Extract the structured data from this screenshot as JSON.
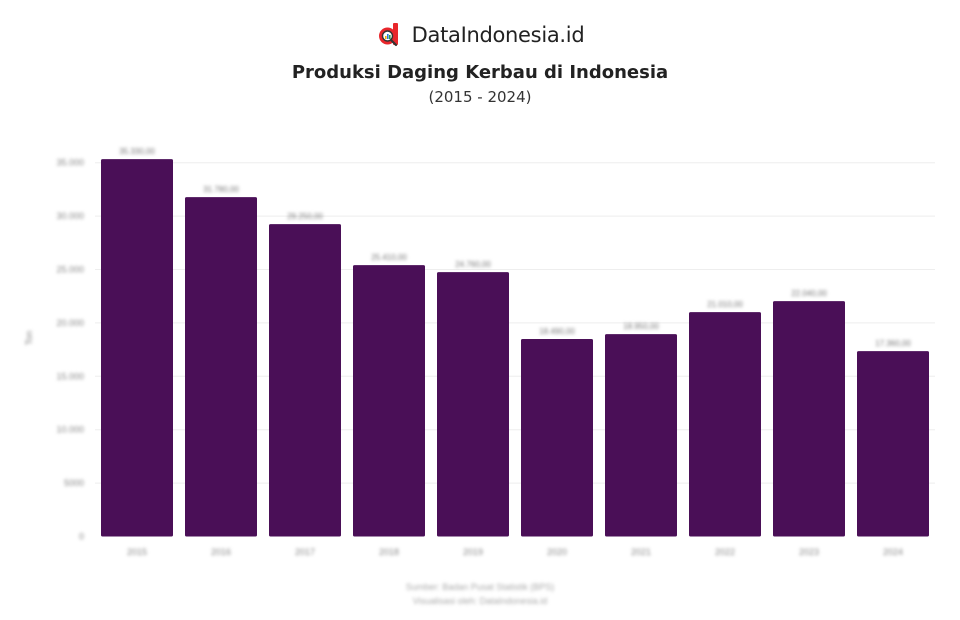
{
  "header": {
    "brand_name": "DataIndonesia.id",
    "logo_icon": "dataindonesia-logo-icon",
    "title": "Produksi Daging Kerbau di Indonesia",
    "subtitle": "(2015 - 2024)"
  },
  "colors": {
    "bar": "#4a0f57",
    "grid": "#eeeeee",
    "brand_red": "#e8262b"
  },
  "footer": {
    "source": "Sumber: Badan Pusat Statistik (BPS)",
    "credit": "Visualisasi oleh: DataIndonesia.id"
  },
  "chart_data": {
    "type": "bar",
    "title": "Produksi Daging Kerbau di Indonesia",
    "subtitle": "(2015 - 2024)",
    "xlabel": "",
    "ylabel": "Ton",
    "categories": [
      "2015",
      "2016",
      "2017",
      "2018",
      "2019",
      "2020",
      "2021",
      "2022",
      "2023",
      "2024"
    ],
    "values": [
      35330,
      31780,
      29250,
      25410,
      24760,
      18490,
      18950,
      21010,
      22040,
      17360
    ],
    "value_labels": [
      "35.330,00",
      "31.780,00",
      "29.250,00",
      "25.410,00",
      "24.760,00",
      "18.490,00",
      "18.950,00",
      "21.010,00",
      "22.040,00",
      "17.360,00"
    ],
    "ylim": [
      0,
      37000
    ],
    "yticks": [
      0,
      5000,
      10000,
      15000,
      20000,
      25000,
      30000,
      35000
    ],
    "ytick_labels": [
      "0",
      "5000",
      "10.000",
      "15.000",
      "20.000",
      "25.000",
      "30.000",
      "35.000"
    ],
    "grid": true,
    "legend": "none"
  }
}
